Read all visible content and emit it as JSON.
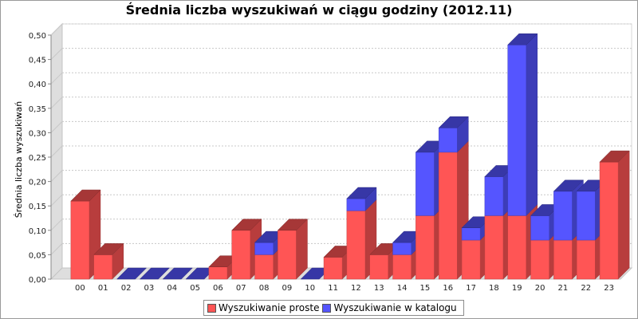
{
  "chart_data": {
    "type": "bar",
    "title": "Średnia liczba wyszukiwań w ciągu godziny (2012.11)",
    "ylabel": "Średnia liczba wyszukiwań",
    "xlabel": "",
    "ylim": [
      0,
      0.5
    ],
    "yticks": [
      "0,00",
      "0,05",
      "0,10",
      "0,15",
      "0,20",
      "0,25",
      "0,30",
      "0,35",
      "0,40",
      "0,45",
      "0,50"
    ],
    "stacked": true,
    "grid": true,
    "legend_position": "bottom",
    "categories": [
      "00",
      "01",
      "02",
      "03",
      "04",
      "05",
      "06",
      "07",
      "08",
      "09",
      "10",
      "11",
      "12",
      "13",
      "14",
      "15",
      "16",
      "17",
      "18",
      "19",
      "20",
      "21",
      "22",
      "23"
    ],
    "series": [
      {
        "name": "Wyszukiwanie proste",
        "color": "#ff5555",
        "values": [
          0.16,
          0.05,
          0,
          0,
          0,
          0,
          0.025,
          0.1,
          0.05,
          0.1,
          0,
          0.045,
          0.14,
          0.05,
          0.05,
          0.13,
          0.26,
          0.08,
          0.13,
          0.13,
          0.08,
          0.08,
          0.08,
          0.24
        ]
      },
      {
        "name": "Wyszukiwanie w katalogu",
        "color": "#5555ff",
        "values": [
          0,
          0,
          0,
          0,
          0,
          0,
          0,
          0,
          0.025,
          0,
          0,
          0,
          0.025,
          0,
          0.025,
          0.13,
          0.05,
          0.025,
          0.08,
          0.35,
          0.05,
          0.1,
          0.1,
          0
        ]
      }
    ]
  }
}
